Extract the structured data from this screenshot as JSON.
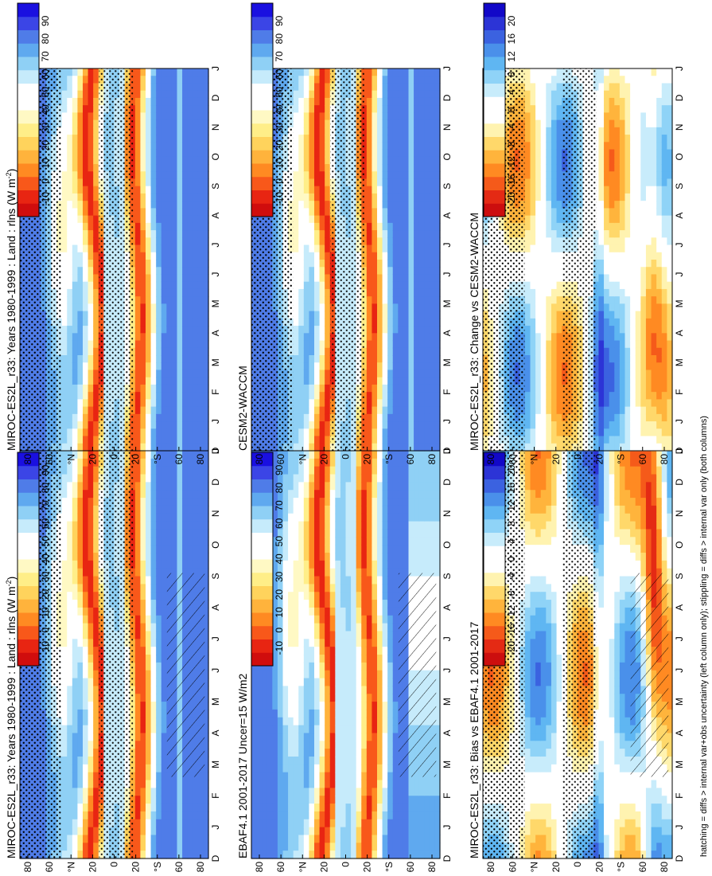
{
  "figure_caption": "hatching = diffs > internal var+obs uncertainty (left column only); stippling = diffs > internal var only (both columns)",
  "chart_data": [
    {
      "id": "p1",
      "type": "heatmap",
      "title": "MIROC-ES2L_r33: Years 1980-1999 : Land : rlns (W m",
      "title_sup": "-2",
      "title_end": ")",
      "months": [
        "J",
        "F",
        "M",
        "A",
        "M",
        "J",
        "J",
        "A",
        "S",
        "O",
        "N",
        "D",
        "J"
      ],
      "month_axis_start": "D",
      "lat_ticks": [
        "80",
        "60",
        "°N",
        "20",
        "0",
        "20",
        "°S",
        "60",
        "80"
      ],
      "colorbar_labels": [
        "90",
        "80",
        "70",
        "60",
        "50",
        "40",
        "30",
        "20",
        "10",
        "0",
        "-10"
      ],
      "range": [
        -15,
        100
      ],
      "palette": "abs",
      "stipple": true,
      "hatch": true
    },
    {
      "id": "p2",
      "type": "heatmap",
      "title": "MIROC-ES2L_r33: Years 1980-1999 : Land : rlns (W m",
      "title_sup": "-2",
      "title_end": ")",
      "months": [
        "J",
        "F",
        "M",
        "A",
        "M",
        "J",
        "J",
        "A",
        "S",
        "O",
        "N",
        "D",
        "J"
      ],
      "month_axis_start": "D",
      "lat_ticks": [
        "80",
        "60",
        "°N",
        "20",
        "0",
        "20",
        "°S",
        "60",
        "80"
      ],
      "colorbar_labels": [
        "90",
        "80",
        "70",
        "60",
        "50",
        "40",
        "30",
        "20",
        "10",
        "0",
        "-10"
      ],
      "range": [
        -15,
        100
      ],
      "palette": "abs",
      "stipple": true,
      "hatch": false
    },
    {
      "id": "p3",
      "type": "heatmap",
      "title": "EBAF4.1 2001-2017 Uncer=15 W/m2",
      "title_sup": "",
      "title_end": "",
      "months": [
        "J",
        "F",
        "M",
        "A",
        "M",
        "J",
        "J",
        "A",
        "S",
        "O",
        "N",
        "D",
        "J"
      ],
      "month_axis_start": "D",
      "lat_ticks": [
        "80",
        "60",
        "°N",
        "20",
        "0",
        "20",
        "°S",
        "60",
        "80"
      ],
      "colorbar_labels": [
        "90",
        "80",
        "70",
        "60",
        "50",
        "40",
        "30",
        "20",
        "10",
        "0",
        "-10"
      ],
      "range": [
        -15,
        100
      ],
      "palette": "abs",
      "stipple": false,
      "hatch": true
    },
    {
      "id": "p4",
      "type": "heatmap",
      "title": "CESM2-WACCM",
      "title_sup": "",
      "title_end": "",
      "months": [
        "J",
        "F",
        "M",
        "A",
        "M",
        "J",
        "J",
        "A",
        "S",
        "O",
        "N",
        "D",
        "J"
      ],
      "month_axis_start": "D",
      "lat_ticks": [
        "80",
        "60",
        "°N",
        "20",
        "0",
        "20",
        "°S",
        "60",
        "80"
      ],
      "colorbar_labels": [
        "90",
        "80",
        "70",
        "60",
        "50",
        "40",
        "30",
        "20",
        "10",
        "0",
        "-10"
      ],
      "range": [
        -15,
        100
      ],
      "palette": "abs",
      "stipple": true,
      "hatch": false
    },
    {
      "id": "p5",
      "type": "heatmap",
      "title": "MIROC-ES2L_r33: Bias vs EBAF4.1 2001-2017",
      "title_sup": "",
      "title_end": "",
      "months": [
        "J",
        "F",
        "M",
        "A",
        "M",
        "J",
        "J",
        "A",
        "S",
        "O",
        "N",
        "D",
        "J"
      ],
      "month_axis_start": "D",
      "lat_ticks": [
        "80",
        "60",
        "°N",
        "20",
        "0",
        "20",
        "°S",
        "60",
        "80"
      ],
      "colorbar_labels": [
        "20",
        "16",
        "12",
        "8",
        "4",
        "0",
        "-4",
        "-8",
        "-12",
        "-16",
        "-20"
      ],
      "range": [
        -22,
        22
      ],
      "palette": "diff",
      "stipple": true,
      "hatch": true
    },
    {
      "id": "p6",
      "type": "heatmap",
      "title": "MIROC-ES2L_r33: Change vs CESM2-WACCM",
      "title_sup": "",
      "title_end": "",
      "months": [
        "J",
        "F",
        "M",
        "A",
        "M",
        "J",
        "J",
        "A",
        "S",
        "O",
        "N",
        "D",
        "J"
      ],
      "month_axis_start": "D",
      "lat_ticks": [
        "80",
        "60",
        "°N",
        "20",
        "0",
        "20",
        "°S",
        "60",
        "80"
      ],
      "colorbar_labels": [
        "20",
        "16",
        "12",
        "8",
        "4",
        "0",
        "-4",
        "-8",
        "-12",
        "-16",
        "-20"
      ],
      "range": [
        -22,
        22
      ],
      "palette": "diff",
      "stipple": true,
      "hatch": false
    }
  ],
  "colors": {
    "abs": [
      "#1a10e0",
      "#3b45e6",
      "#4f7ce8",
      "#5fa9ef",
      "#8fd0f5",
      "#c6ebfb",
      "#ffffff",
      "#ffffff",
      "#fff9c4",
      "#ffee88",
      "#ffd35c",
      "#ffb33c",
      "#ff8a22",
      "#f8581a",
      "#e82512",
      "#d00d0d"
    ],
    "diff": [
      "#1208c8",
      "#2c34d6",
      "#3b62e0",
      "#4a90ea",
      "#5fb6f2",
      "#8fd3f7",
      "#c8ecfb",
      "#ffffff",
      "#ffffff",
      "#fff3b0",
      "#ffd86a",
      "#ffb43c",
      "#ff8a22",
      "#f55a1a",
      "#e42a14",
      "#cc0e0e"
    ]
  }
}
